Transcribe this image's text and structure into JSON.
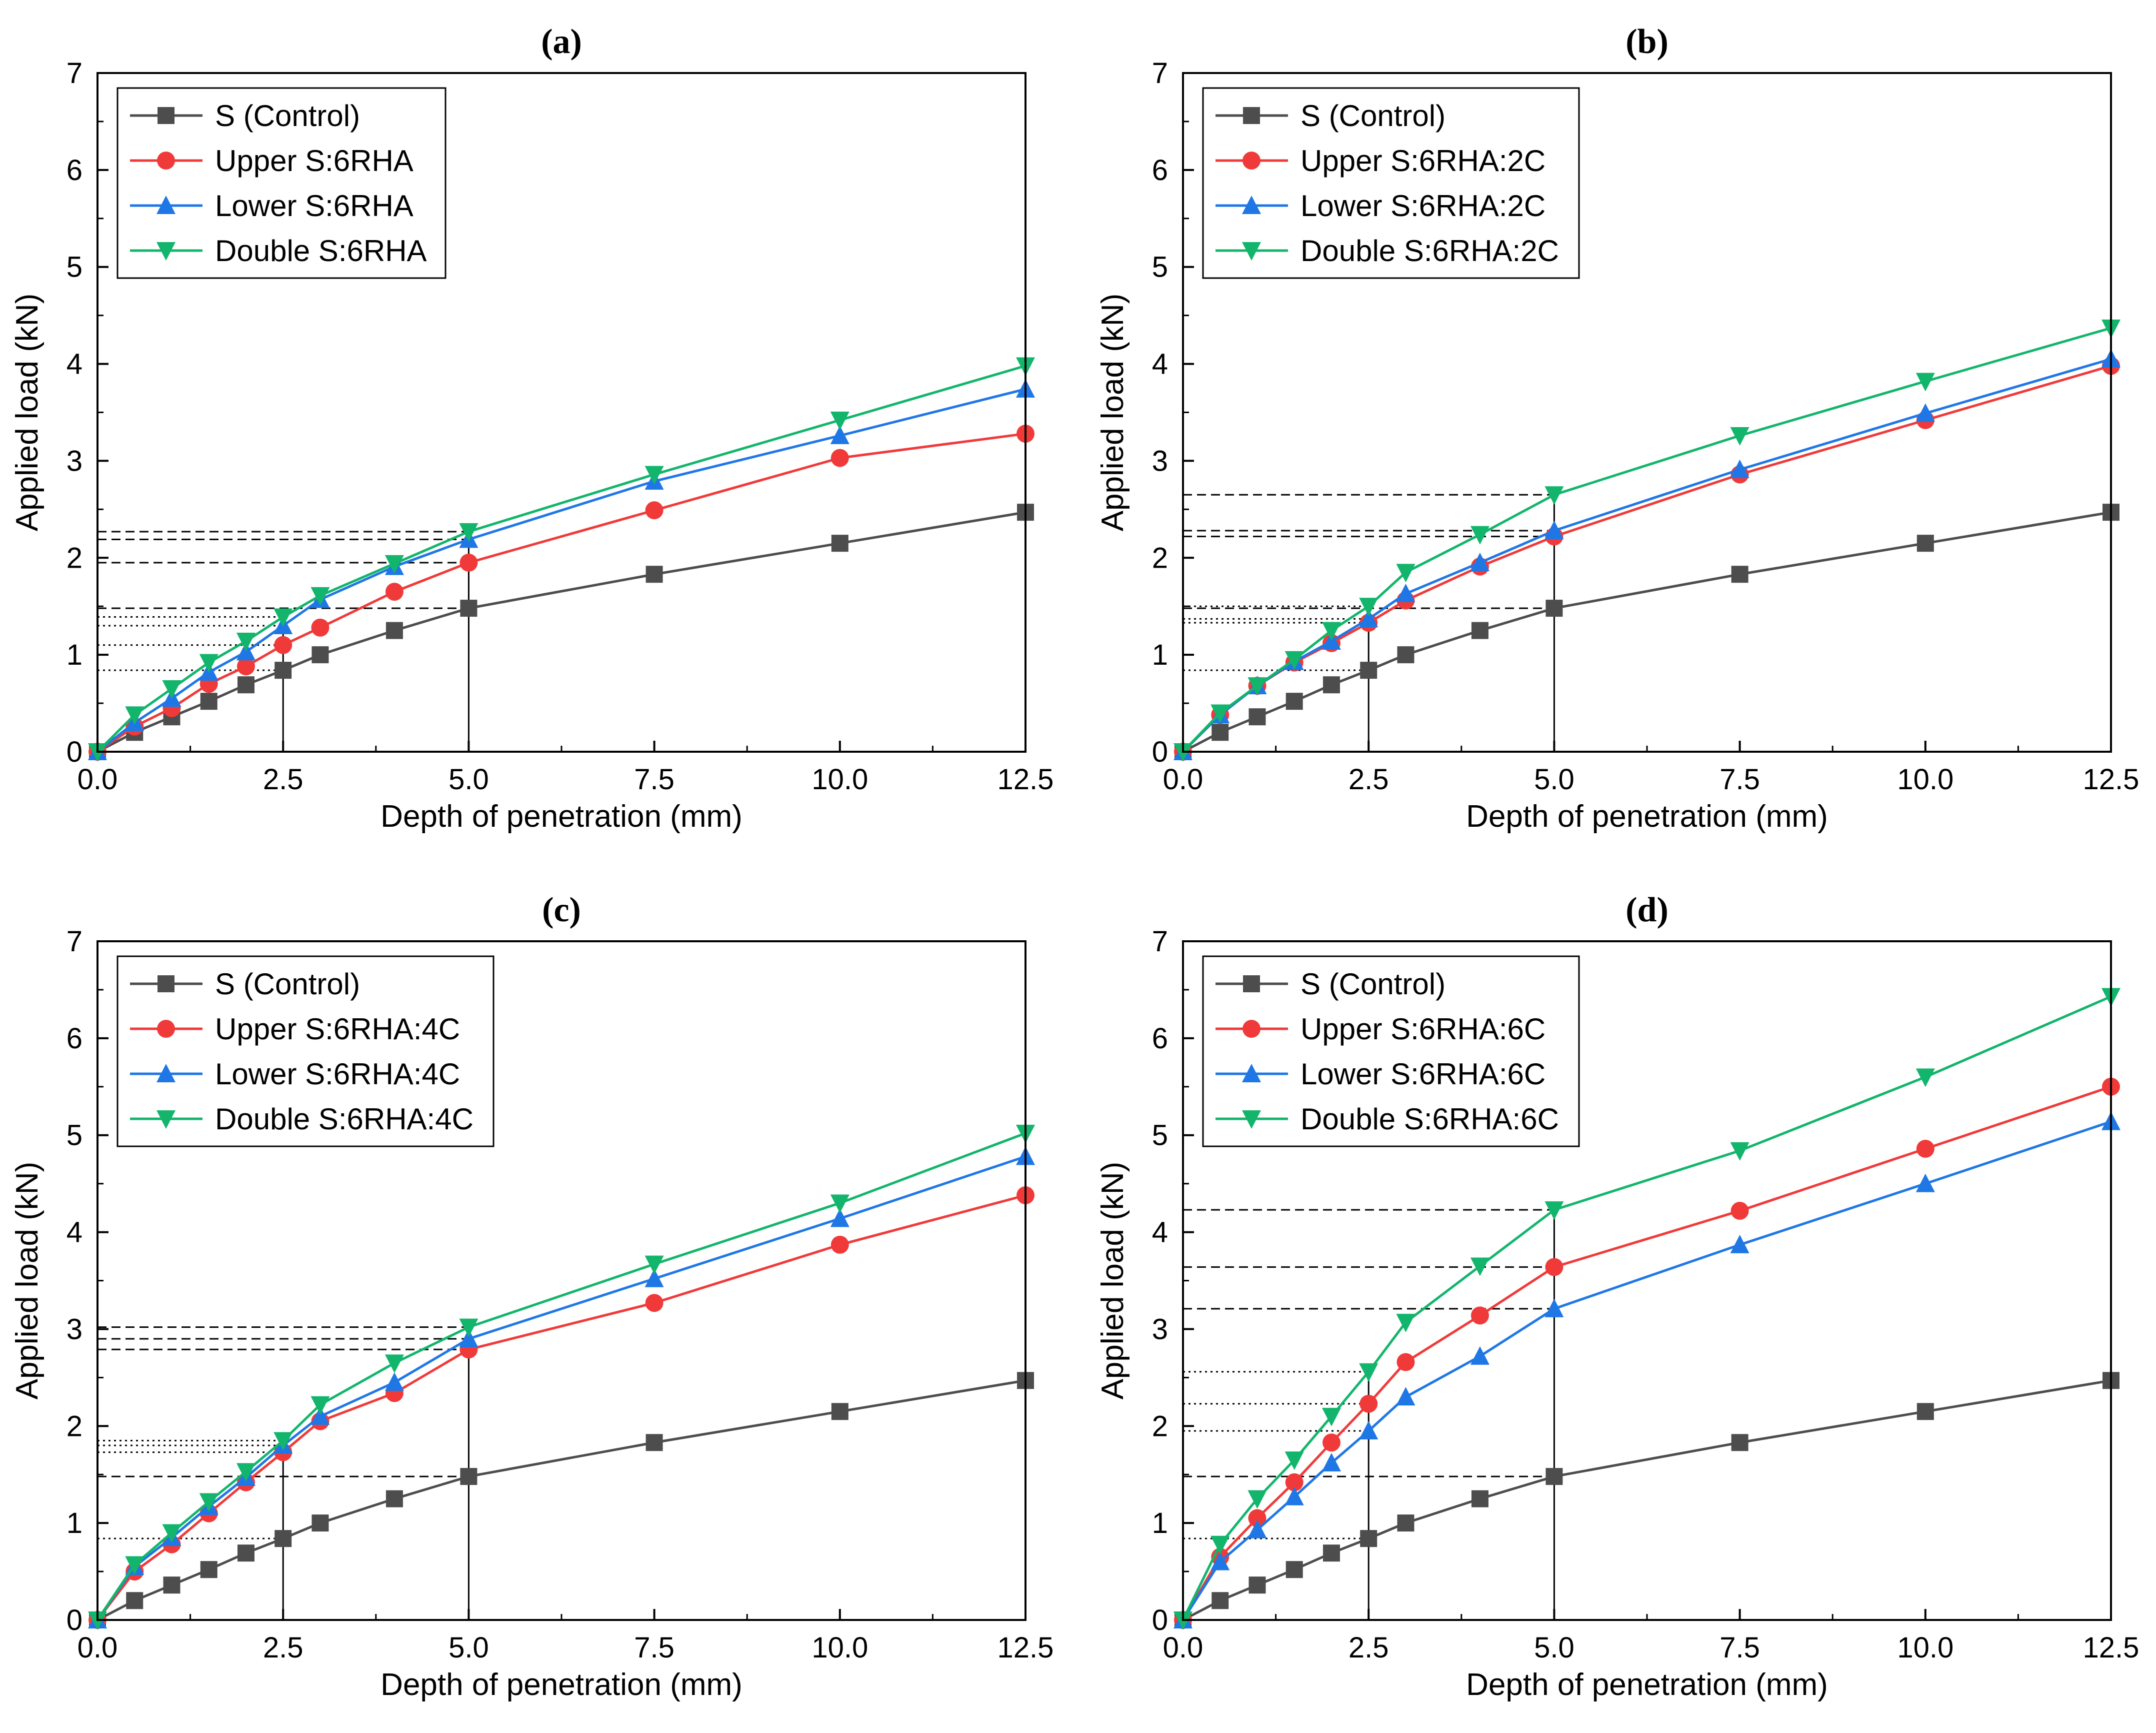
{
  "colors": {
    "control": "#4d4d4d",
    "upper": "#f03a3a",
    "lower": "#1f77e6",
    "double": "#12b56b",
    "axis": "#000000",
    "refline": "#000000"
  },
  "chart_data": [
    {
      "type": "line",
      "title": "(a)",
      "xlabel": "Depth of penetration (mm)",
      "ylabel": "Applied load (kN)",
      "xlim": [
        0,
        12.5
      ],
      "ylim": [
        0,
        7
      ],
      "xticks": [
        "0.0",
        "2.5",
        "5.0",
        "7.5",
        "10.0",
        "12.5"
      ],
      "yticks": [
        "0",
        "1",
        "2",
        "3",
        "4",
        "5",
        "6",
        "7"
      ],
      "legend_position": "top-left",
      "x": [
        0,
        0.5,
        1,
        1.5,
        2,
        2.5,
        3,
        4,
        5,
        7.5,
        10,
        12.5
      ],
      "series": [
        {
          "name": "S (Control)",
          "marker": "square",
          "values": [
            0,
            0.2,
            0.36,
            0.52,
            0.69,
            0.84,
            1.0,
            1.25,
            1.48,
            1.83,
            2.15,
            2.47
          ]
        },
        {
          "name": "Upper S:6RHA",
          "marker": "circle",
          "values": [
            0,
            0.26,
            0.45,
            0.7,
            0.88,
            1.1,
            1.28,
            1.65,
            1.95,
            2.49,
            3.03,
            3.28
          ]
        },
        {
          "name": "Lower S:6RHA",
          "marker": "triangle-up",
          "values": [
            0,
            0.3,
            0.55,
            0.82,
            1.03,
            1.3,
            1.57,
            1.91,
            2.19,
            2.79,
            3.26,
            3.74
          ]
        },
        {
          "name": "Double S:6RHA",
          "marker": "triangle-down",
          "values": [
            0,
            0.38,
            0.65,
            0.92,
            1.14,
            1.39,
            1.61,
            1.94,
            2.27,
            2.86,
            3.42,
            3.98
          ]
        }
      ],
      "reference_dashed": [
        1.48,
        1.95,
        2.19,
        2.27
      ],
      "reference_dotted": [
        0.84,
        1.1,
        1.3,
        1.39
      ]
    },
    {
      "type": "line",
      "title": "(b)",
      "xlabel": "Depth of penetration (mm)",
      "ylabel": "Applied load (kN)",
      "xlim": [
        0,
        12.5
      ],
      "ylim": [
        0,
        7
      ],
      "xticks": [
        "0.0",
        "2.5",
        "5.0",
        "7.5",
        "10.0",
        "12.5"
      ],
      "yticks": [
        "0",
        "1",
        "2",
        "3",
        "4",
        "5",
        "6",
        "7"
      ],
      "legend_position": "top-left",
      "x": [
        0,
        0.5,
        1,
        1.5,
        2,
        2.5,
        3,
        4,
        5,
        7.5,
        10,
        12.5
      ],
      "series": [
        {
          "name": "S (Control)",
          "marker": "square",
          "values": [
            0,
            0.2,
            0.36,
            0.52,
            0.69,
            0.84,
            1.0,
            1.25,
            1.48,
            1.83,
            2.15,
            2.47
          ]
        },
        {
          "name": "Upper S:6RHA:2C",
          "marker": "circle",
          "values": [
            0,
            0.38,
            0.68,
            0.92,
            1.12,
            1.33,
            1.56,
            1.91,
            2.22,
            2.86,
            3.42,
            3.98
          ]
        },
        {
          "name": "Lower S:6RHA:2C",
          "marker": "triangle-up",
          "values": [
            0,
            0.38,
            0.68,
            0.93,
            1.14,
            1.37,
            1.63,
            1.95,
            2.28,
            2.91,
            3.49,
            4.05
          ]
        },
        {
          "name": "Double S:6RHA:2C",
          "marker": "triangle-down",
          "values": [
            0,
            0.4,
            0.68,
            0.95,
            1.25,
            1.5,
            1.85,
            2.24,
            2.65,
            3.26,
            3.82,
            4.37
          ]
        }
      ],
      "reference_dashed": [
        1.48,
        2.22,
        2.28,
        2.65
      ],
      "reference_dotted": [
        0.84,
        1.33,
        1.37,
        1.5
      ]
    },
    {
      "type": "line",
      "title": "(c)",
      "xlabel": "Depth of penetration (mm)",
      "ylabel": "Applied load (kN)",
      "xlim": [
        0,
        12.5
      ],
      "ylim": [
        0,
        7
      ],
      "xticks": [
        "0.0",
        "2.5",
        "5.0",
        "7.5",
        "10.0",
        "12.5"
      ],
      "yticks": [
        "0",
        "1",
        "2",
        "3",
        "4",
        "5",
        "6",
        "7"
      ],
      "legend_position": "top-left",
      "x": [
        0,
        0.5,
        1,
        1.5,
        2,
        2.5,
        3,
        4,
        5,
        7.5,
        10,
        12.5
      ],
      "series": [
        {
          "name": "S (Control)",
          "marker": "square",
          "values": [
            0,
            0.2,
            0.36,
            0.52,
            0.69,
            0.84,
            1.0,
            1.25,
            1.48,
            1.83,
            2.15,
            2.47
          ]
        },
        {
          "name": "Upper S:6RHA:4C",
          "marker": "circle",
          "values": [
            0,
            0.5,
            0.78,
            1.1,
            1.42,
            1.73,
            2.05,
            2.34,
            2.79,
            3.27,
            3.87,
            4.38
          ]
        },
        {
          "name": "Lower S:6RHA:4C",
          "marker": "triangle-up",
          "values": [
            0,
            0.55,
            0.85,
            1.17,
            1.47,
            1.8,
            2.1,
            2.45,
            2.9,
            3.52,
            4.14,
            4.78
          ]
        },
        {
          "name": "Double S:6RHA:4C",
          "marker": "triangle-down",
          "values": [
            0,
            0.57,
            0.9,
            1.22,
            1.53,
            1.85,
            2.22,
            2.65,
            3.02,
            3.67,
            4.3,
            5.02
          ]
        }
      ],
      "reference_dashed": [
        1.48,
        2.79,
        2.9,
        3.02
      ],
      "reference_dotted": [
        0.84,
        1.73,
        1.8,
        1.85
      ]
    },
    {
      "type": "line",
      "title": "(d)",
      "xlabel": "Depth of penetration (mm)",
      "ylabel": "Applied load (kN)",
      "xlim": [
        0,
        12.5
      ],
      "ylim": [
        0,
        7
      ],
      "xticks": [
        "0.0",
        "2.5",
        "5.0",
        "7.5",
        "10.0",
        "12.5"
      ],
      "yticks": [
        "0",
        "1",
        "2",
        "3",
        "4",
        "5",
        "6",
        "7"
      ],
      "legend_position": "top-left",
      "x": [
        0,
        0.5,
        1,
        1.5,
        2,
        2.5,
        3,
        4,
        5,
        7.5,
        10,
        12.5
      ],
      "series": [
        {
          "name": "S (Control)",
          "marker": "square",
          "values": [
            0,
            0.2,
            0.36,
            0.52,
            0.69,
            0.84,
            1.0,
            1.25,
            1.48,
            1.83,
            2.15,
            2.47
          ]
        },
        {
          "name": "Upper S:6RHA:6C",
          "marker": "circle",
          "values": [
            0,
            0.65,
            1.05,
            1.42,
            1.83,
            2.23,
            2.66,
            3.14,
            3.64,
            4.22,
            4.86,
            5.5
          ]
        },
        {
          "name": "Lower S:6RHA:6C",
          "marker": "triangle-up",
          "values": [
            0,
            0.6,
            0.93,
            1.27,
            1.62,
            1.95,
            2.3,
            2.72,
            3.21,
            3.87,
            4.5,
            5.14
          ]
        },
        {
          "name": "Double S:6RHA:6C",
          "marker": "triangle-down",
          "values": [
            0,
            0.78,
            1.25,
            1.65,
            2.1,
            2.56,
            3.07,
            3.65,
            4.23,
            4.84,
            5.6,
            6.43
          ]
        }
      ],
      "reference_dashed": [
        1.48,
        3.21,
        3.64,
        4.23
      ],
      "reference_dotted": [
        0.84,
        1.95,
        2.23,
        2.56
      ]
    }
  ]
}
